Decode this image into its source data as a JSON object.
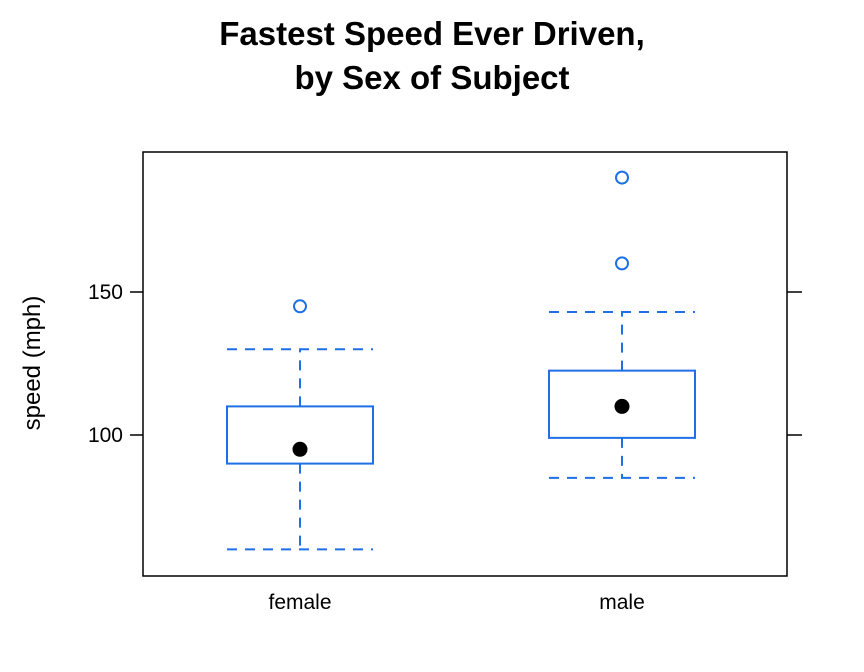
{
  "chart_data": {
    "type": "boxplot",
    "title_lines": [
      "Fastest Speed Ever Driven,",
      "by Sex of Subject"
    ],
    "xlabel": "",
    "ylabel": "speed (mph)",
    "ylim": [
      55,
      195
    ],
    "yticks": [
      100,
      150
    ],
    "grid": false,
    "box_color": "#1f6fe5",
    "median_color": "#000000",
    "categories": [
      "female",
      "male"
    ],
    "boxes": [
      {
        "category": "female",
        "whisker_low": 60,
        "q1": 90,
        "median": 95,
        "q3": 110,
        "whisker_high": 130,
        "outliers": [
          145
        ]
      },
      {
        "category": "male",
        "whisker_low": 85,
        "q1": 99,
        "median": 110,
        "q3": 122.5,
        "whisker_high": 143,
        "outliers": [
          160,
          190
        ]
      }
    ]
  }
}
